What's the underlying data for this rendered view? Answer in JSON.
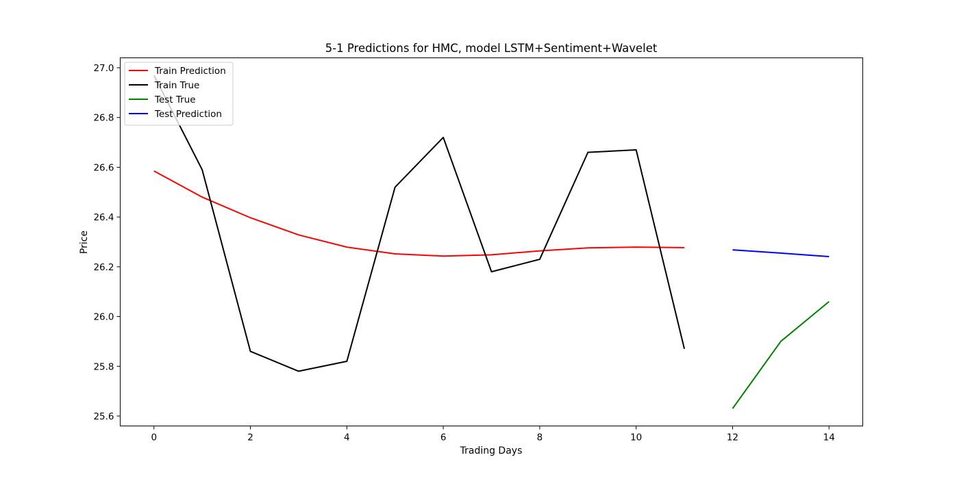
{
  "chart_data": {
    "type": "line",
    "title": "5-1 Predictions for HMC, model LSTM+Sentiment+Wavelet",
    "xlabel": "Trading Days",
    "ylabel": "Price",
    "xlim": [
      -0.7,
      14.7
    ],
    "ylim": [
      25.56,
      27.04
    ],
    "xticks": [
      0,
      2,
      4,
      6,
      8,
      10,
      12,
      14
    ],
    "xtick_labels": [
      "0",
      "2",
      "4",
      "6",
      "8",
      "10",
      "12",
      "14"
    ],
    "yticks": [
      25.6,
      25.8,
      26.0,
      26.2,
      26.4,
      26.6,
      26.8,
      27.0
    ],
    "ytick_labels": [
      "25.6",
      "25.8",
      "26.0",
      "26.2",
      "26.4",
      "26.6",
      "26.8",
      "27.0"
    ],
    "grid": false,
    "legend_position": "top-left",
    "series": [
      {
        "name": "Train Prediction",
        "color": "#ff0000",
        "x": [
          0,
          1,
          2,
          3,
          4,
          5,
          6,
          7,
          8,
          9,
          10,
          11
        ],
        "y": [
          26.585,
          26.48,
          26.397,
          26.328,
          26.279,
          26.252,
          26.243,
          26.248,
          26.264,
          26.276,
          26.279,
          26.277
        ]
      },
      {
        "name": "Train True",
        "color": "#000000",
        "x": [
          0,
          1,
          2,
          3,
          4,
          5,
          6,
          7,
          8,
          9,
          10,
          11
        ],
        "y": [
          26.97,
          26.59,
          25.86,
          25.78,
          25.82,
          26.52,
          26.72,
          26.18,
          26.23,
          26.66,
          26.67,
          25.87
        ]
      },
      {
        "name": "Test True",
        "color": "#008000",
        "x": [
          12,
          13,
          14
        ],
        "y": [
          25.63,
          25.9,
          26.06
        ]
      },
      {
        "name": "Test Prediction",
        "color": "#0000ff",
        "x": [
          12,
          13,
          14
        ],
        "y": [
          26.268,
          26.255,
          26.241
        ]
      }
    ]
  }
}
